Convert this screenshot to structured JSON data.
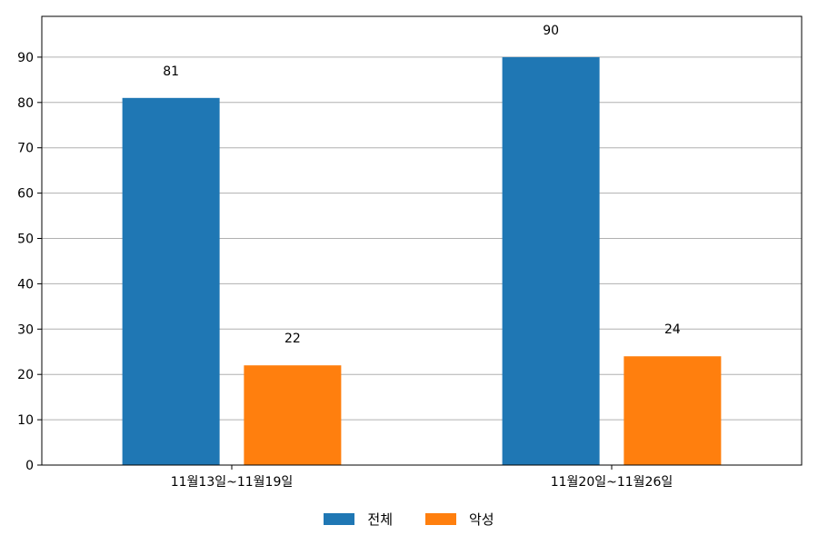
{
  "chart_data": {
    "type": "bar",
    "categories": [
      "11월13일~11월19일",
      "11월20일~11월26일"
    ],
    "series": [
      {
        "name": "전체",
        "values": [
          81,
          90
        ],
        "color": "#1f77b4"
      },
      {
        "name": "악성",
        "values": [
          22,
          24
        ],
        "color": "#ff7f0e"
      }
    ],
    "ylim": [
      0,
      99
    ],
    "yticks": [
      0,
      10,
      20,
      30,
      40,
      50,
      60,
      70,
      80,
      90
    ],
    "grid": "y",
    "legend_position": "bottom-center",
    "data_labels": true
  }
}
